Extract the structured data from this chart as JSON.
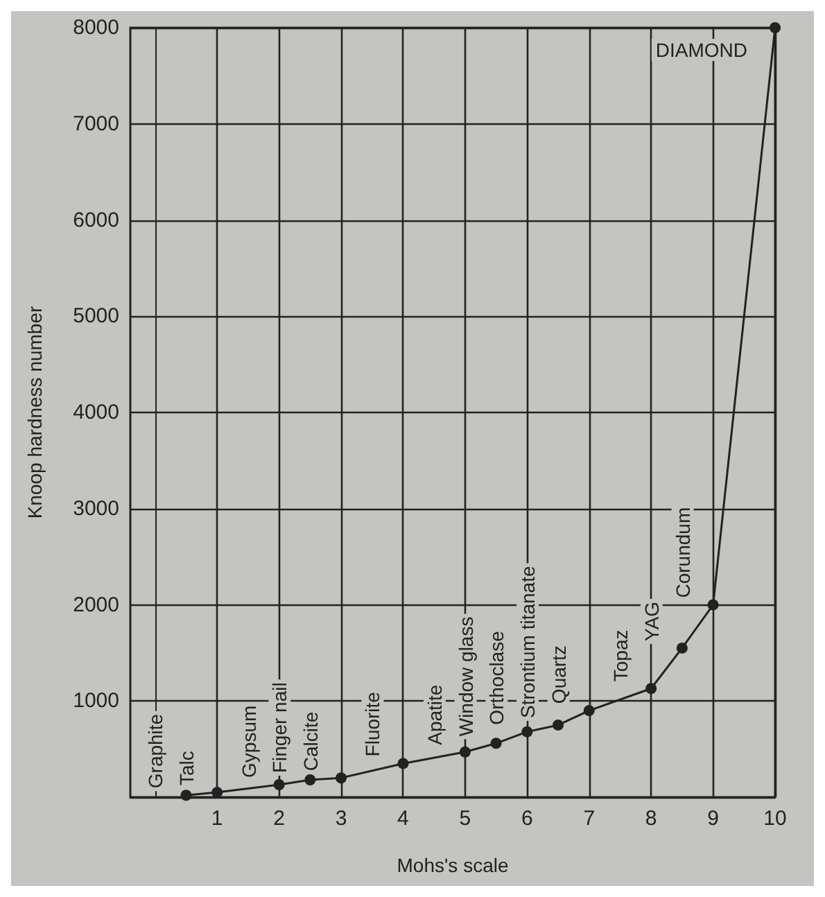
{
  "chart_data": {
    "type": "line",
    "xlabel": "Mohs's scale",
    "ylabel": "Knoop hardness number",
    "x": [
      0.5,
      1,
      2,
      2.5,
      3,
      4,
      5,
      5.5,
      6,
      6.5,
      7,
      8,
      8.5,
      9,
      10
    ],
    "series": [
      {
        "color": "#222222",
        "values": [
          20,
          50,
          130,
          180,
          200,
          350,
          470,
          560,
          680,
          750,
          900,
          1130,
          1550,
          2000,
          8000
        ]
      }
    ],
    "xlim": [
      -0.4,
      10
    ],
    "xticks": [
      1,
      2,
      3,
      4,
      5,
      6,
      7,
      8,
      9,
      10
    ],
    "ylim": [
      0,
      8000
    ],
    "yticks": [
      {
        "value": 0,
        "label": null
      },
      1000,
      2000,
      3000,
      4000,
      5000,
      6000,
      7000,
      8000
    ],
    "grid": true,
    "marker": "circle",
    "line_style": "solid",
    "annotations": [
      {
        "text": "Graphite",
        "x": 0.5,
        "y": 20
      },
      {
        "text": "Talc",
        "x": 1,
        "y": 50
      },
      {
        "text": "Gypsum",
        "x": 2,
        "y": 130
      },
      {
        "text": "Finger nail",
        "x": 2.5,
        "y": 180
      },
      {
        "text": "Calcite",
        "x": 3,
        "y": 200
      },
      {
        "text": "Fluorite",
        "x": 4,
        "y": 350
      },
      {
        "text": "Apatite",
        "x": 5,
        "y": 470
      },
      {
        "text": "Window glass",
        "x": 5.5,
        "y": 560
      },
      {
        "text": "Orthoclase",
        "x": 6,
        "y": 680
      },
      {
        "text": "Strontium titanate",
        "x": 6.5,
        "y": 750
      },
      {
        "text": "Quartz",
        "x": 7,
        "y": 900
      },
      {
        "text": "Topaz",
        "x": 8,
        "y": 1130
      },
      {
        "text": "YAG",
        "x": 8.5,
        "y": 1550
      },
      {
        "text": "Corundum",
        "x": 9,
        "y": 2000
      },
      {
        "text": "DIAMOND",
        "x": 10,
        "y": 8000
      }
    ]
  }
}
